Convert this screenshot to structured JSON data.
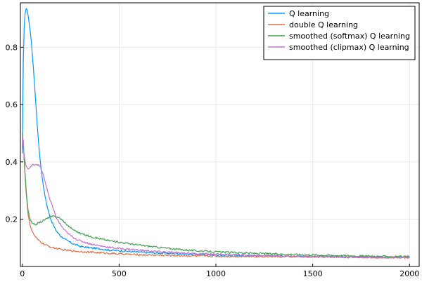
{
  "chart_data": {
    "type": "line",
    "title": "",
    "xlabel": "",
    "ylabel": "",
    "xlim": [
      -10,
      2050
    ],
    "ylim": [
      0.035,
      0.955
    ],
    "xticks": [
      0,
      500,
      1000,
      1500,
      2000
    ],
    "xtick_labels": [
      "0",
      "500",
      "1000",
      "1500",
      "2000"
    ],
    "yticks": [
      0.2,
      0.4,
      0.6,
      0.8
    ],
    "ytick_labels": [
      "0.2",
      "0.4",
      "0.6",
      "0.8"
    ],
    "grid": true,
    "legend_position": "top-right",
    "series": [
      {
        "name": "Q learning",
        "color": "#009AFA",
        "x": [
          0,
          5,
          10,
          15,
          20,
          25,
          30,
          40,
          50,
          60,
          70,
          80,
          90,
          100,
          110,
          120,
          130,
          140,
          150,
          160,
          170,
          180,
          190,
          200,
          220,
          240,
          260,
          280,
          300,
          350,
          400,
          450,
          500,
          600,
          700,
          800,
          900,
          1000,
          1200,
          1400,
          1600,
          1800,
          2000
        ],
        "y": [
          0.43,
          0.75,
          0.88,
          0.92,
          0.935,
          0.93,
          0.91,
          0.86,
          0.79,
          0.7,
          0.6,
          0.5,
          0.42,
          0.36,
          0.31,
          0.27,
          0.24,
          0.215,
          0.195,
          0.18,
          0.165,
          0.155,
          0.148,
          0.14,
          0.13,
          0.122,
          0.115,
          0.11,
          0.105,
          0.1,
          0.097,
          0.092,
          0.09,
          0.085,
          0.082,
          0.08,
          0.077,
          0.075,
          0.073,
          0.071,
          0.069,
          0.068,
          0.067
        ]
      },
      {
        "name": "double Q learning",
        "color": "#E26F46",
        "x": [
          0,
          5,
          10,
          15,
          20,
          25,
          30,
          40,
          50,
          60,
          80,
          100,
          120,
          150,
          200,
          250,
          300,
          400,
          500,
          600,
          800,
          1000,
          1200,
          1400,
          1600,
          1800,
          2000
        ],
        "y": [
          0.5,
          0.46,
          0.4,
          0.34,
          0.29,
          0.25,
          0.215,
          0.18,
          0.16,
          0.145,
          0.128,
          0.118,
          0.11,
          0.102,
          0.094,
          0.09,
          0.087,
          0.083,
          0.079,
          0.076,
          0.073,
          0.071,
          0.07,
          0.069,
          0.068,
          0.067,
          0.066
        ]
      },
      {
        "name": "smoothed (softmax) Q learning",
        "color": "#3DA44D",
        "x": [
          0,
          5,
          10,
          15,
          20,
          25,
          30,
          40,
          50,
          60,
          70,
          80,
          100,
          120,
          140,
          160,
          180,
          200,
          220,
          240,
          260,
          300,
          350,
          400,
          450,
          500,
          600,
          700,
          800,
          900,
          1000,
          1200,
          1400,
          1600,
          1800,
          2000
        ],
        "y": [
          0.5,
          0.47,
          0.41,
          0.35,
          0.3,
          0.26,
          0.23,
          0.2,
          0.186,
          0.181,
          0.182,
          0.186,
          0.192,
          0.2,
          0.207,
          0.21,
          0.208,
          0.2,
          0.188,
          0.175,
          0.165,
          0.15,
          0.14,
          0.132,
          0.125,
          0.12,
          0.11,
          0.102,
          0.095,
          0.09,
          0.086,
          0.081,
          0.077,
          0.074,
          0.071,
          0.069
        ]
      },
      {
        "name": "smoothed (clipmax) Q learning",
        "color": "#C371D2",
        "x": [
          0,
          5,
          10,
          15,
          20,
          25,
          30,
          40,
          50,
          60,
          70,
          80,
          90,
          100,
          110,
          120,
          130,
          140,
          150,
          160,
          170,
          180,
          200,
          220,
          240,
          260,
          280,
          300,
          350,
          400,
          450,
          500,
          600,
          700,
          800,
          900,
          1000,
          1200,
          1400,
          1600,
          1800,
          2000
        ],
        "y": [
          0.49,
          0.45,
          0.42,
          0.4,
          0.385,
          0.38,
          0.375,
          0.38,
          0.388,
          0.39,
          0.392,
          0.39,
          0.385,
          0.37,
          0.35,
          0.325,
          0.3,
          0.275,
          0.255,
          0.235,
          0.215,
          0.2,
          0.178,
          0.16,
          0.148,
          0.138,
          0.13,
          0.124,
          0.114,
          0.107,
          0.102,
          0.098,
          0.092,
          0.087,
          0.083,
          0.08,
          0.078,
          0.074,
          0.071,
          0.069,
          0.067,
          0.065
        ]
      }
    ]
  }
}
